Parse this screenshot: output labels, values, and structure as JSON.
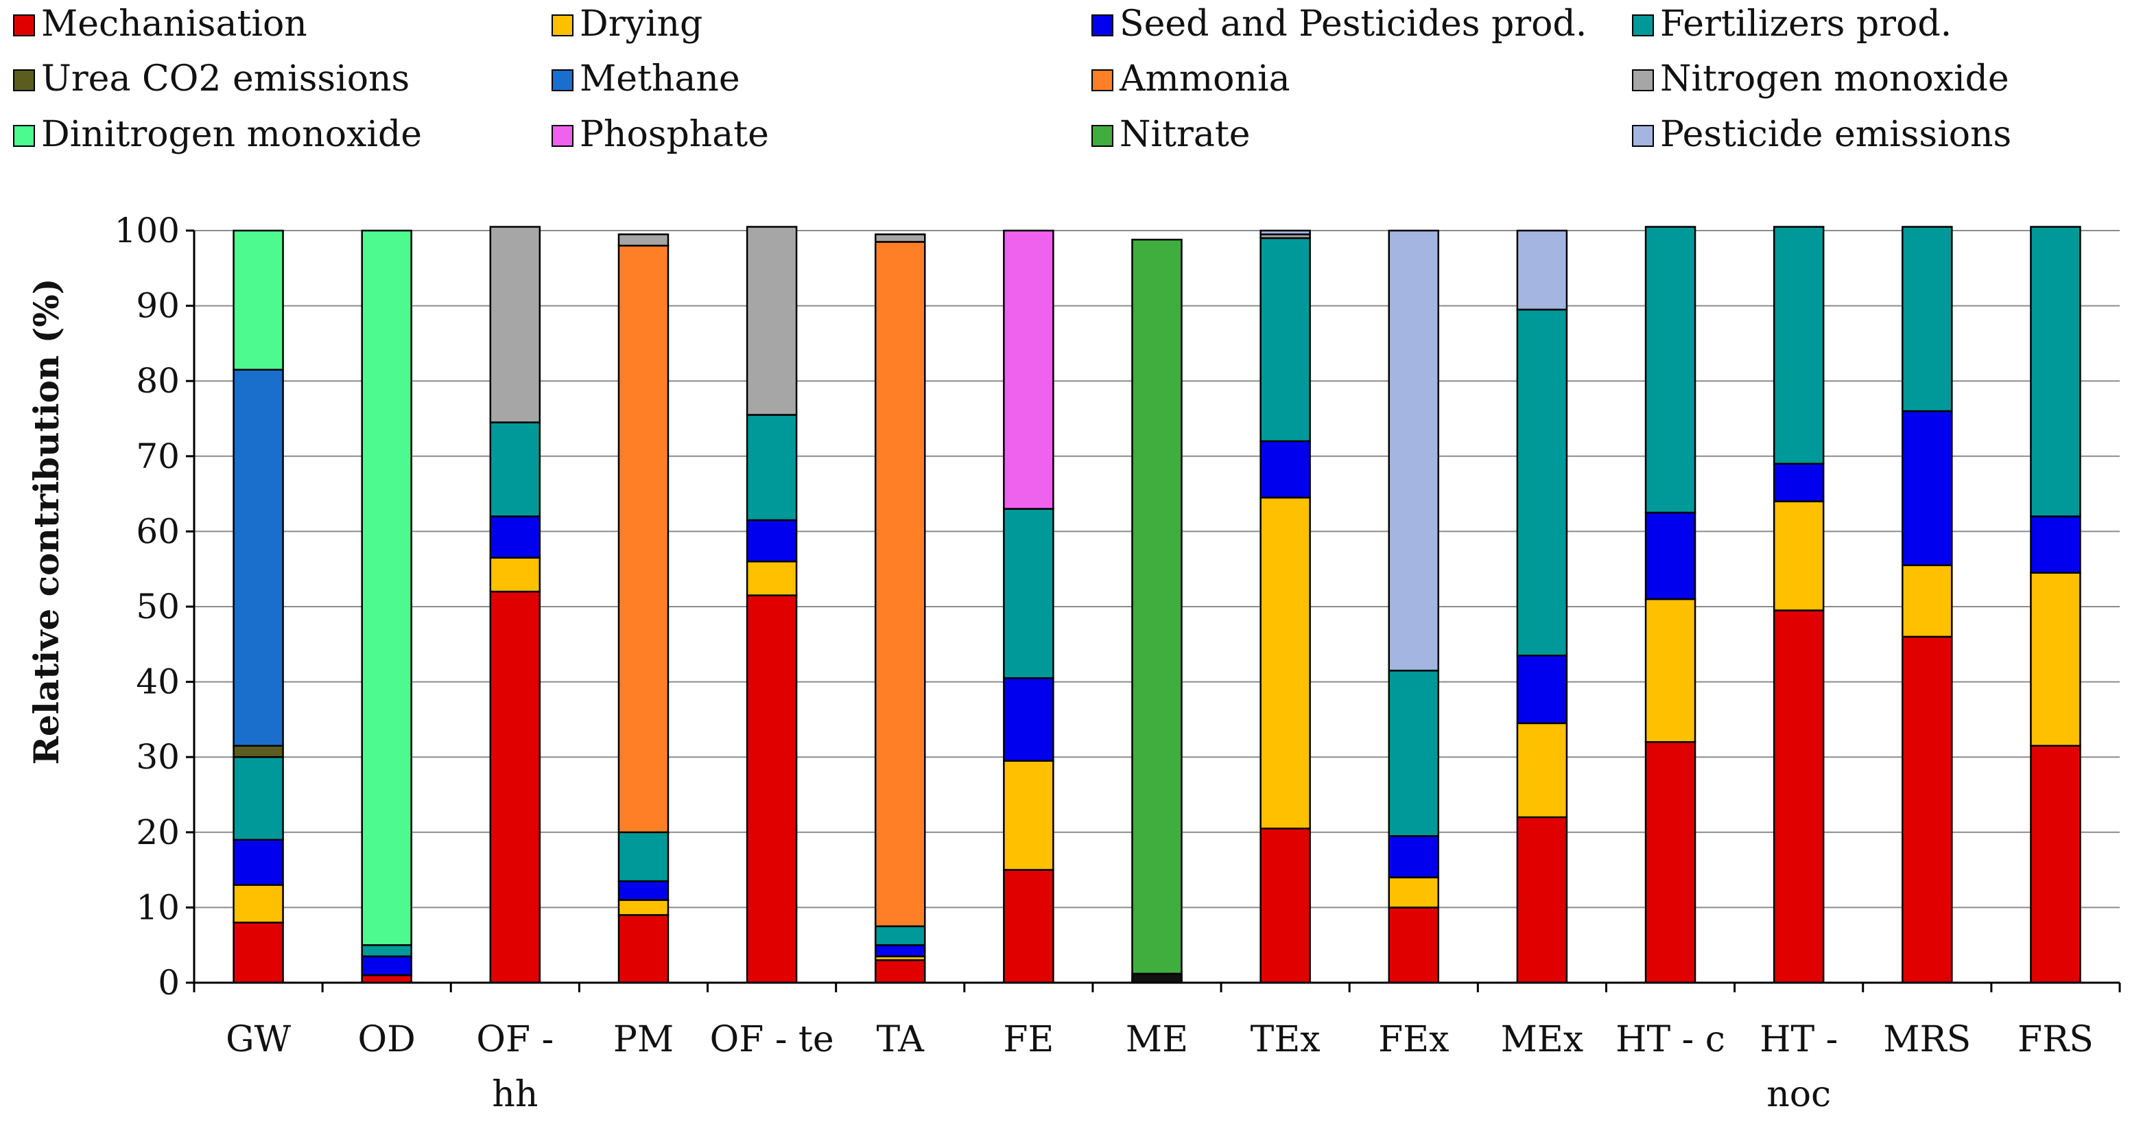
{
  "chart_data": {
    "type": "bar",
    "stacked": true,
    "title": "",
    "xlabel": "",
    "ylabel": "Relative contribution (%)",
    "ylim": [
      0,
      100
    ],
    "yticks": [
      0,
      10,
      20,
      30,
      40,
      50,
      60,
      70,
      80,
      90,
      100
    ],
    "grid": true,
    "legend_position": "top",
    "categories": [
      [
        "GW"
      ],
      [
        "OD"
      ],
      [
        "OF -",
        "hh"
      ],
      [
        "PM"
      ],
      [
        "OF - te"
      ],
      [
        "TA"
      ],
      [
        "FE"
      ],
      [
        "ME"
      ],
      [
        "TEx"
      ],
      [
        "FEx"
      ],
      [
        "MEx"
      ],
      [
        "HT - c"
      ],
      [
        "HT -",
        "noc"
      ],
      [
        "MRS"
      ],
      [
        "FRS"
      ]
    ],
    "series": [
      {
        "name": "Mechanisation",
        "color": "#e00000",
        "values": [
          8,
          1,
          52,
          9,
          51.5,
          3,
          15,
          0,
          20.5,
          10,
          22,
          32,
          49.5,
          46,
          31.5
        ]
      },
      {
        "name": "Drying",
        "color": "#ffc000",
        "values": [
          5,
          0,
          4.5,
          2,
          4.5,
          0.5,
          14.5,
          0,
          44,
          4,
          12.5,
          19,
          14.5,
          9.5,
          23
        ]
      },
      {
        "name": "Seed and Pesticides prod.",
        "color": "#0000ee",
        "values": [
          6,
          2.5,
          5.5,
          2.5,
          5.5,
          1.5,
          11,
          0,
          7.5,
          5.5,
          9,
          11.5,
          5,
          20.5,
          7.5
        ]
      },
      {
        "name": "Fertilizers prod.",
        "color": "#009999",
        "values": [
          11,
          1.5,
          12.5,
          6.5,
          14,
          2.5,
          22.5,
          0,
          27,
          22,
          46,
          38,
          31.5,
          24.5,
          38.5
        ]
      },
      {
        "name": "Urea CO2 emissions",
        "color": "#5c5c1f",
        "values": [
          1.5,
          0,
          0,
          0,
          0,
          0,
          0,
          0.3,
          0,
          0,
          0,
          0,
          0,
          0,
          0
        ]
      },
      {
        "name": "Methane",
        "color": "#1a6fcc",
        "values": [
          50,
          0,
          0,
          0,
          0,
          0,
          0,
          0,
          0,
          0,
          0,
          0,
          0,
          0,
          0
        ]
      },
      {
        "name": "Ammonia",
        "color": "#ff7f27",
        "values": [
          0,
          0,
          0,
          78,
          0,
          91,
          0,
          0,
          0,
          0,
          0,
          0,
          0,
          0,
          0
        ]
      },
      {
        "name": "Nitrogen monoxide",
        "color": "#a6a6a6",
        "values": [
          0,
          0,
          26,
          1.5,
          25,
          1,
          0,
          0,
          0.5,
          0,
          0,
          0,
          0,
          0,
          0
        ]
      },
      {
        "name": "Dinitrogen monoxide",
        "color": "#4dfa8f",
        "values": [
          18.5,
          95,
          0,
          0,
          0,
          0,
          0,
          0,
          0,
          0,
          0,
          0,
          0,
          0,
          0
        ]
      },
      {
        "name": "Phosphate",
        "color": "#ee62ee",
        "values": [
          0,
          0,
          0,
          0,
          0,
          0,
          37,
          0,
          0,
          0,
          0,
          0,
          0,
          0,
          0
        ]
      },
      {
        "name": "Nitrate",
        "color": "#3fae3f",
        "values": [
          0,
          0,
          0,
          0,
          0,
          0,
          0,
          98.5,
          0,
          0,
          0,
          0,
          0,
          0,
          0
        ]
      },
      {
        "name": "Pesticide emissions",
        "color": "#a3b5e0",
        "values": [
          0,
          0,
          0,
          0,
          0,
          0,
          0,
          0,
          0.5,
          58.5,
          10.5,
          0,
          0,
          0,
          0
        ]
      }
    ],
    "extra_segments": [
      {
        "category_index": 7,
        "color": "#111111",
        "bottom": 0,
        "value": 1.2
      }
    ]
  }
}
